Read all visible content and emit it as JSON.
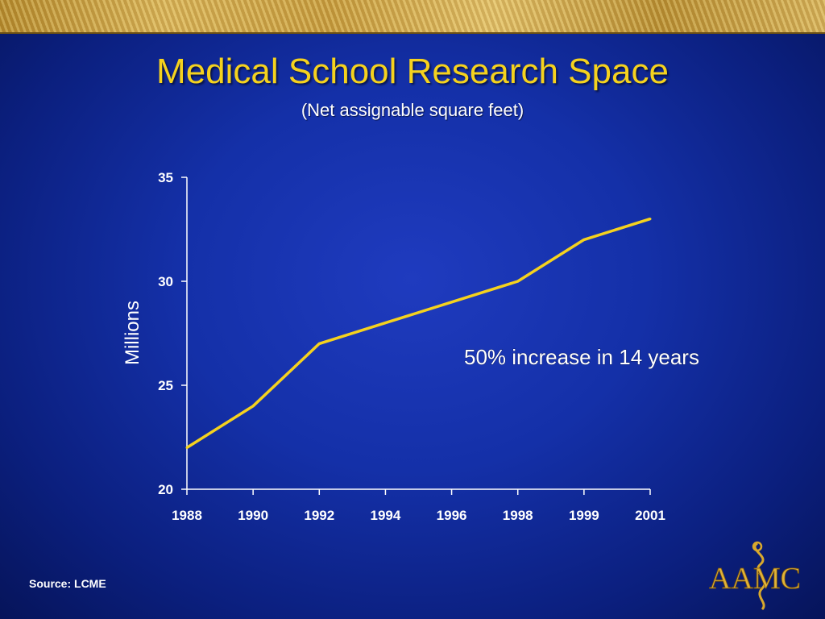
{
  "title": "Medical School Research Space",
  "subtitle": "(Net assignable square feet)",
  "annotation": "50% increase in 14 years",
  "source": "Source: LCME",
  "logo": {
    "text": "AAMC"
  },
  "colors": {
    "line": "#f5d21e",
    "title": "#f5d21e",
    "text": "#ffffff",
    "axis": "#ffffff"
  },
  "chart_data": {
    "type": "line",
    "title": "Medical School Research Space",
    "subtitle": "(Net assignable square feet)",
    "xlabel": "",
    "ylabel": "Millions",
    "categories": [
      "1988",
      "1990",
      "1992",
      "1994",
      "1996",
      "1998",
      "1999",
      "2001"
    ],
    "series": [
      {
        "values": [
          22,
          24,
          27,
          28,
          29,
          30,
          32,
          33
        ]
      }
    ],
    "ylim": [
      20,
      35
    ],
    "yticks": [
      20,
      25,
      30,
      35
    ],
    "grid": false,
    "annotation": "50% increase in 14 years"
  }
}
